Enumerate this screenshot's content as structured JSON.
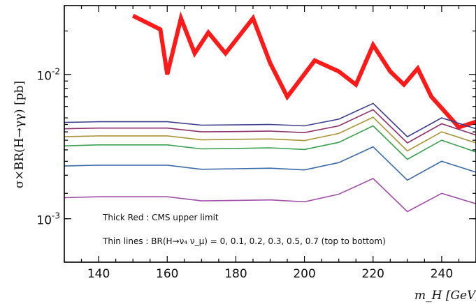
{
  "chart_data": {
    "type": "line",
    "title": "",
    "xlabel": "m_H [GeV]",
    "ylabel": "σ×BR(H→γγ) [pb]",
    "xlim": [
      130,
      250
    ],
    "ylim": [
      0.0005,
      0.03
    ],
    "y_scale": "log",
    "x_ticks": [
      140,
      160,
      180,
      200,
      220,
      240
    ],
    "x_tick_labels": [
      "140",
      "160",
      "180",
      "200",
      "220",
      "240"
    ],
    "y_ticks": [
      0.001,
      0.01
    ],
    "y_tick_labels": [
      {
        "base": "10",
        "exp": "-3"
      },
      {
        "base": "10",
        "exp": "-2"
      }
    ],
    "grid": false,
    "annotations": [
      "Thick Red : CMS upper limit",
      "Thin lines : BR(H→ν₄ ν_μ) = 0, 0.1, 0.2, 0.3, 0.5, 0.7 (top to bottom)"
    ],
    "series": [
      {
        "color": "#ff1a1a",
        "thick": true,
        "x": [
          150,
          158,
          160,
          164,
          168,
          172,
          177,
          185,
          190,
          195,
          203,
          210,
          215,
          220,
          225,
          229,
          233,
          237,
          241,
          245,
          250
        ],
        "y": [
          0.0255,
          0.0205,
          0.01,
          0.0245,
          0.014,
          0.0195,
          0.014,
          0.0245,
          0.012,
          0.007,
          0.0125,
          0.0105,
          0.0085,
          0.016,
          0.0105,
          0.0085,
          0.011,
          0.007,
          0.0055,
          0.0043,
          0.0047
        ]
      },
      {
        "color": "#3d3d8f",
        "thick": false,
        "x": [
          130,
          140,
          160,
          170,
          180,
          190,
          200,
          210,
          220,
          230,
          240,
          250
        ],
        "y": [
          0.00465,
          0.0047,
          0.0047,
          0.00445,
          0.00447,
          0.0045,
          0.0044,
          0.0049,
          0.0063,
          0.0037,
          0.005,
          0.0042
        ]
      },
      {
        "color": "#8e2f6d",
        "thick": false,
        "x": [
          130,
          140,
          160,
          170,
          180,
          190,
          200,
          210,
          220,
          230,
          240,
          250
        ],
        "y": [
          0.0042,
          0.00425,
          0.00425,
          0.004,
          0.00402,
          0.00405,
          0.00395,
          0.0044,
          0.0057,
          0.00335,
          0.00455,
          0.0038
        ]
      },
      {
        "color": "#a89437",
        "thick": false,
        "x": [
          130,
          140,
          160,
          170,
          180,
          190,
          200,
          210,
          220,
          230,
          240,
          250
        ],
        "y": [
          0.0037,
          0.00375,
          0.00375,
          0.00352,
          0.00355,
          0.00357,
          0.00348,
          0.0039,
          0.00505,
          0.00295,
          0.004,
          0.00335
        ]
      },
      {
        "color": "#3aa04f",
        "thick": false,
        "x": [
          130,
          140,
          160,
          170,
          180,
          190,
          200,
          210,
          220,
          230,
          240,
          250
        ],
        "y": [
          0.0032,
          0.00325,
          0.00325,
          0.00305,
          0.00307,
          0.0031,
          0.00302,
          0.00338,
          0.0044,
          0.00258,
          0.0035,
          0.0029
        ]
      },
      {
        "color": "#3a6aa8",
        "thick": false,
        "x": [
          130,
          140,
          160,
          170,
          180,
          190,
          200,
          210,
          220,
          230,
          240,
          250
        ],
        "y": [
          0.00232,
          0.00235,
          0.00235,
          0.0022,
          0.00222,
          0.00224,
          0.00218,
          0.00245,
          0.00315,
          0.00185,
          0.0025,
          0.0021
        ]
      },
      {
        "color": "#a050a8",
        "thick": false,
        "x": [
          130,
          140,
          160,
          170,
          180,
          190,
          200,
          210,
          220,
          230,
          240,
          250
        ],
        "y": [
          0.0014,
          0.00142,
          0.00142,
          0.00133,
          0.00134,
          0.00135,
          0.00131,
          0.00148,
          0.0019,
          0.00112,
          0.0015,
          0.00127
        ]
      }
    ]
  }
}
